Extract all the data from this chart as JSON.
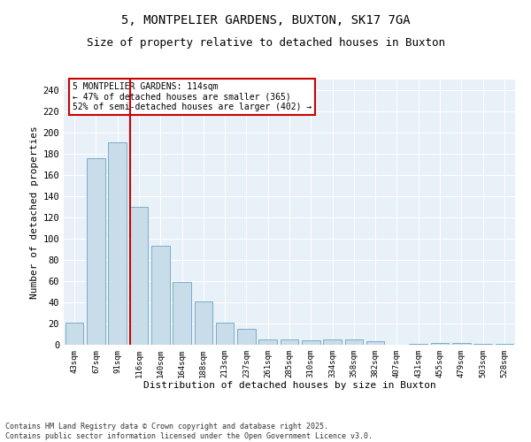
{
  "title1": "5, MONTPELIER GARDENS, BUXTON, SK17 7GA",
  "title2": "Size of property relative to detached houses in Buxton",
  "xlabel": "Distribution of detached houses by size in Buxton",
  "ylabel": "Number of detached properties",
  "categories": [
    "43sqm",
    "67sqm",
    "91sqm",
    "116sqm",
    "140sqm",
    "164sqm",
    "188sqm",
    "213sqm",
    "237sqm",
    "261sqm",
    "285sqm",
    "310sqm",
    "334sqm",
    "358sqm",
    "382sqm",
    "407sqm",
    "431sqm",
    "455sqm",
    "479sqm",
    "503sqm",
    "528sqm"
  ],
  "values": [
    21,
    176,
    191,
    130,
    93,
    59,
    41,
    21,
    15,
    5,
    5,
    4,
    5,
    5,
    3,
    0,
    1,
    2,
    2,
    1,
    1
  ],
  "bar_color": "#c9dce9",
  "bar_edge_color": "#7aaec8",
  "vline_x_idx": 3,
  "vline_color": "#cc0000",
  "annotation_text": "5 MONTPELIER GARDENS: 114sqm\n← 47% of detached houses are smaller (365)\n52% of semi-detached houses are larger (402) →",
  "annotation_box_color": "#cc0000",
  "ylim": [
    0,
    250
  ],
  "yticks": [
    0,
    20,
    40,
    60,
    80,
    100,
    120,
    140,
    160,
    180,
    200,
    220,
    240
  ],
  "bg_color": "#e8f0f8",
  "footer1": "Contains HM Land Registry data © Crown copyright and database right 2025.",
  "footer2": "Contains public sector information licensed under the Open Government Licence v3.0."
}
